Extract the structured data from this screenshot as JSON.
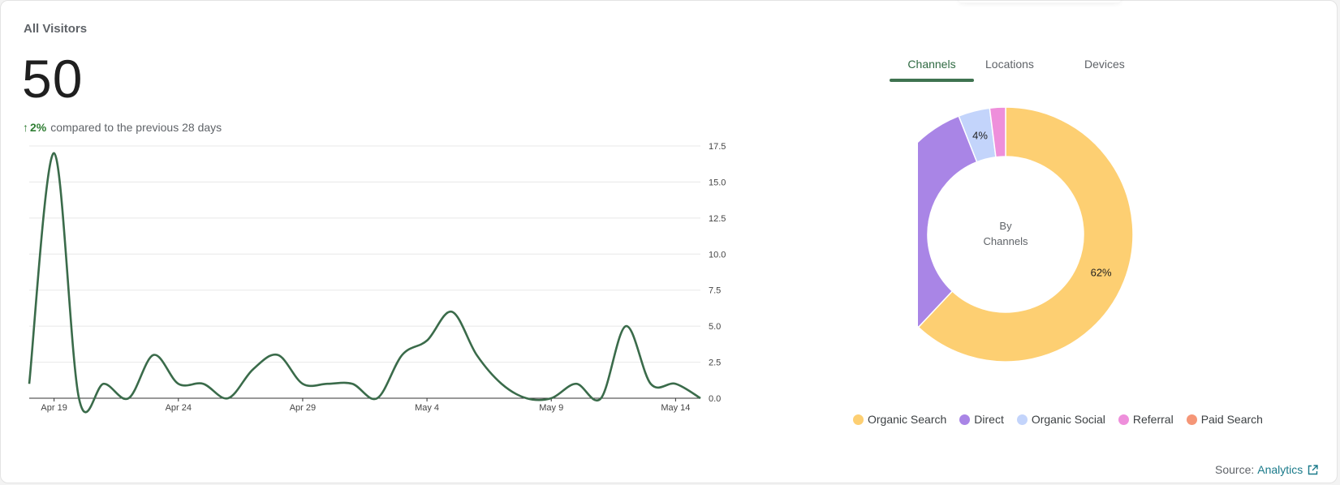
{
  "card": {
    "title": "All Visitors",
    "total": "50",
    "change_pct": "2%",
    "change_text": "compared to the previous 28 days"
  },
  "tabs": [
    "Channels",
    "Locations",
    "Devices"
  ],
  "donut_center": {
    "line1": "By",
    "line2": "Channels"
  },
  "source": {
    "label": "Source:",
    "link": "Analytics"
  },
  "colors": {
    "line": "#3a6b4a",
    "grid": "#e8e8e8",
    "axis": "#333333",
    "up": "#2e7d32"
  },
  "chart_data": [
    {
      "type": "line",
      "x": [
        "Apr 18",
        "Apr 19",
        "Apr 20",
        "Apr 21",
        "Apr 22",
        "Apr 23",
        "Apr 24",
        "Apr 25",
        "Apr 26",
        "Apr 27",
        "Apr 28",
        "Apr 29",
        "Apr 30",
        "May 1",
        "May 2",
        "May 3",
        "May 4",
        "May 5",
        "May 6",
        "May 7",
        "May 8",
        "May 9",
        "May 10",
        "May 11",
        "May 12",
        "May 13",
        "May 14",
        "May 15"
      ],
      "series": [
        {
          "values": [
            1,
            17,
            0,
            1,
            0,
            3,
            1,
            1,
            0,
            2,
            3,
            1,
            1,
            1,
            0,
            3,
            4,
            6,
            3,
            1,
            0,
            0,
            1,
            0,
            5,
            1,
            1,
            0
          ]
        }
      ],
      "x_ticks": [
        "Apr 19",
        "Apr 24",
        "Apr 29",
        "May 4",
        "May 9",
        "May 14"
      ],
      "y_ticks": [
        "0.0",
        "2.5",
        "5.0",
        "7.5",
        "10.0",
        "12.5",
        "15.0",
        "17.5"
      ],
      "ylim": [
        0,
        17.5
      ],
      "y_axis_side": "right",
      "grid": true
    },
    {
      "type": "pie",
      "donut": true,
      "categories": [
        "Organic Search",
        "Direct",
        "Organic Social",
        "Referral",
        "Paid Search"
      ],
      "values": [
        62,
        32,
        4,
        2,
        0
      ],
      "labels": [
        "62%",
        "32%",
        "4%",
        "",
        ""
      ],
      "colors": [
        "#fdcf72",
        "#a985e6",
        "#c3d4fb",
        "#ee8fdb",
        "#f59677"
      ],
      "legend_position": "bottom"
    }
  ]
}
